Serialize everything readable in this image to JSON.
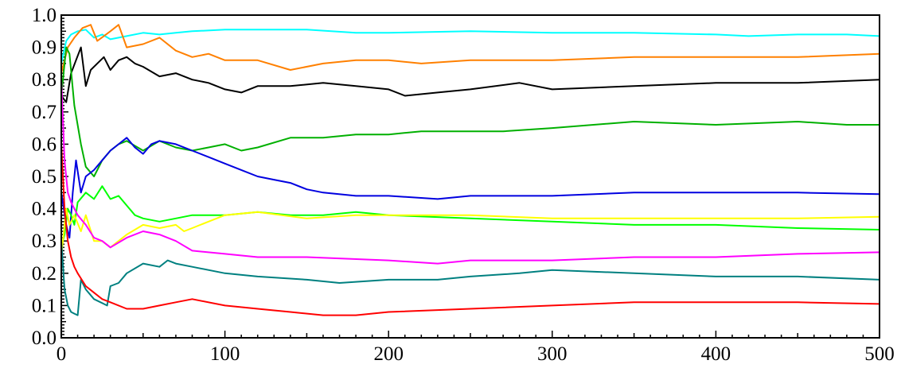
{
  "chart_data": {
    "type": "line",
    "title": "",
    "xlabel": "",
    "ylabel": "",
    "xlim": [
      0,
      500
    ],
    "ylim": [
      0.0,
      1.0
    ],
    "grid": false,
    "legend": "none",
    "x_ticks": [
      0,
      100,
      200,
      300,
      400,
      500
    ],
    "x_tick_labels": [
      "0",
      "100",
      "200",
      "300",
      "400",
      "500"
    ],
    "y_ticks": [
      0.0,
      0.1,
      0.2,
      0.3,
      0.4,
      0.5,
      0.6,
      0.7,
      0.8,
      0.9,
      1.0
    ],
    "y_tick_labels": [
      "0.0",
      "0.1",
      "0.2",
      "0.3",
      "0.4",
      "0.5",
      "0.6",
      "0.7",
      "0.8",
      "0.9",
      "1.0"
    ],
    "series": [
      {
        "color": "#00ffff",
        "x": [
          0,
          3,
          6,
          10,
          15,
          20,
          25,
          30,
          40,
          50,
          60,
          70,
          80,
          100,
          120,
          150,
          180,
          200,
          250,
          300,
          350,
          400,
          420,
          450,
          480,
          500
        ],
        "y": [
          0.85,
          0.92,
          0.94,
          0.95,
          0.955,
          0.93,
          0.94,
          0.925,
          0.935,
          0.945,
          0.94,
          0.945,
          0.95,
          0.955,
          0.955,
          0.955,
          0.945,
          0.945,
          0.95,
          0.945,
          0.945,
          0.94,
          0.935,
          0.94,
          0.94,
          0.935
        ]
      },
      {
        "color": "#ff8000",
        "x": [
          0,
          4,
          8,
          13,
          18,
          22,
          30,
          35,
          40,
          50,
          60,
          70,
          80,
          90,
          100,
          120,
          140,
          160,
          180,
          200,
          220,
          250,
          300,
          350,
          400,
          450,
          500
        ],
        "y": [
          0.82,
          0.9,
          0.93,
          0.96,
          0.97,
          0.92,
          0.95,
          0.97,
          0.9,
          0.91,
          0.93,
          0.89,
          0.87,
          0.88,
          0.86,
          0.86,
          0.83,
          0.85,
          0.86,
          0.86,
          0.85,
          0.86,
          0.86,
          0.87,
          0.87,
          0.87,
          0.88
        ]
      },
      {
        "color": "#000000",
        "x": [
          0,
          3,
          6,
          9,
          12,
          15,
          18,
          22,
          26,
          30,
          35,
          40,
          45,
          50,
          60,
          70,
          80,
          90,
          100,
          110,
          120,
          140,
          160,
          180,
          200,
          210,
          230,
          250,
          280,
          300,
          350,
          400,
          450,
          500
        ],
        "y": [
          0.75,
          0.73,
          0.82,
          0.86,
          0.9,
          0.78,
          0.83,
          0.85,
          0.87,
          0.83,
          0.86,
          0.87,
          0.85,
          0.84,
          0.81,
          0.82,
          0.8,
          0.79,
          0.77,
          0.76,
          0.78,
          0.78,
          0.79,
          0.78,
          0.77,
          0.75,
          0.76,
          0.77,
          0.79,
          0.77,
          0.78,
          0.79,
          0.79,
          0.8
        ]
      },
      {
        "color": "#00b000",
        "x": [
          0,
          3,
          5,
          8,
          12,
          15,
          20,
          25,
          30,
          35,
          40,
          50,
          60,
          70,
          80,
          90,
          100,
          110,
          120,
          140,
          160,
          180,
          200,
          220,
          250,
          270,
          300,
          350,
          400,
          450,
          480,
          500
        ],
        "y": [
          0.75,
          0.9,
          0.88,
          0.72,
          0.6,
          0.53,
          0.5,
          0.55,
          0.58,
          0.6,
          0.61,
          0.58,
          0.61,
          0.59,
          0.58,
          0.59,
          0.6,
          0.58,
          0.59,
          0.62,
          0.62,
          0.63,
          0.63,
          0.64,
          0.64,
          0.64,
          0.65,
          0.67,
          0.66,
          0.67,
          0.66,
          0.66
        ]
      },
      {
        "color": "#0000e0",
        "x": [
          0,
          3,
          5,
          7,
          9,
          12,
          15,
          20,
          25,
          30,
          35,
          40,
          45,
          50,
          55,
          60,
          70,
          80,
          90,
          100,
          110,
          120,
          130,
          140,
          150,
          160,
          180,
          200,
          230,
          250,
          300,
          350,
          400,
          450,
          500
        ],
        "y": [
          0.45,
          0.35,
          0.31,
          0.45,
          0.55,
          0.45,
          0.5,
          0.52,
          0.55,
          0.58,
          0.6,
          0.62,
          0.59,
          0.57,
          0.6,
          0.61,
          0.6,
          0.58,
          0.56,
          0.54,
          0.52,
          0.5,
          0.49,
          0.48,
          0.46,
          0.45,
          0.44,
          0.44,
          0.43,
          0.44,
          0.44,
          0.45,
          0.45,
          0.45,
          0.445
        ]
      },
      {
        "color": "#00ff00",
        "x": [
          0,
          2,
          4,
          6,
          8,
          10,
          15,
          20,
          25,
          30,
          35,
          40,
          45,
          50,
          60,
          70,
          80,
          100,
          120,
          140,
          160,
          180,
          200,
          250,
          300,
          350,
          400,
          450,
          500
        ],
        "y": [
          0.28,
          0.32,
          0.4,
          0.38,
          0.35,
          0.42,
          0.45,
          0.43,
          0.47,
          0.43,
          0.44,
          0.41,
          0.38,
          0.37,
          0.36,
          0.37,
          0.38,
          0.38,
          0.39,
          0.38,
          0.38,
          0.39,
          0.38,
          0.37,
          0.36,
          0.35,
          0.35,
          0.34,
          0.335
        ]
      },
      {
        "color": "#ffff00",
        "x": [
          0,
          3,
          5,
          8,
          12,
          15,
          20,
          25,
          30,
          35,
          40,
          50,
          60,
          70,
          75,
          80,
          90,
          100,
          120,
          150,
          180,
          200,
          250,
          300,
          350,
          400,
          450,
          500
        ],
        "y": [
          0.25,
          0.4,
          0.35,
          0.38,
          0.33,
          0.38,
          0.3,
          0.3,
          0.28,
          0.3,
          0.32,
          0.35,
          0.34,
          0.35,
          0.33,
          0.34,
          0.36,
          0.38,
          0.39,
          0.37,
          0.38,
          0.38,
          0.38,
          0.37,
          0.37,
          0.37,
          0.37,
          0.375
        ]
      },
      {
        "color": "#ff00ff",
        "x": [
          0,
          2,
          4,
          6,
          8,
          10,
          15,
          20,
          25,
          30,
          40,
          50,
          60,
          70,
          80,
          100,
          120,
          150,
          200,
          230,
          250,
          300,
          350,
          400,
          450,
          500
        ],
        "y": [
          0.8,
          0.55,
          0.45,
          0.42,
          0.4,
          0.38,
          0.35,
          0.31,
          0.3,
          0.28,
          0.31,
          0.33,
          0.32,
          0.3,
          0.27,
          0.26,
          0.25,
          0.25,
          0.24,
          0.23,
          0.24,
          0.24,
          0.25,
          0.25,
          0.26,
          0.265
        ]
      },
      {
        "color": "#008080",
        "x": [
          0,
          2,
          4,
          6,
          8,
          10,
          12,
          15,
          20,
          28,
          30,
          35,
          40,
          50,
          60,
          65,
          70,
          80,
          100,
          120,
          150,
          170,
          200,
          230,
          250,
          280,
          300,
          350,
          400,
          450,
          500
        ],
        "y": [
          0.3,
          0.15,
          0.1,
          0.08,
          0.075,
          0.07,
          0.18,
          0.15,
          0.12,
          0.1,
          0.16,
          0.17,
          0.2,
          0.23,
          0.22,
          0.24,
          0.23,
          0.22,
          0.2,
          0.19,
          0.18,
          0.17,
          0.18,
          0.18,
          0.19,
          0.2,
          0.21,
          0.2,
          0.19,
          0.19,
          0.18
        ]
      },
      {
        "color": "#ff0000",
        "x": [
          0,
          2,
          4,
          6,
          8,
          10,
          15,
          20,
          25,
          30,
          40,
          50,
          60,
          70,
          80,
          100,
          120,
          140,
          160,
          180,
          200,
          250,
          300,
          350,
          400,
          450,
          500
        ],
        "y": [
          0.6,
          0.4,
          0.3,
          0.25,
          0.22,
          0.2,
          0.16,
          0.14,
          0.12,
          0.11,
          0.09,
          0.09,
          0.1,
          0.11,
          0.12,
          0.1,
          0.09,
          0.08,
          0.07,
          0.07,
          0.08,
          0.09,
          0.1,
          0.11,
          0.11,
          0.11,
          0.105
        ]
      }
    ]
  }
}
